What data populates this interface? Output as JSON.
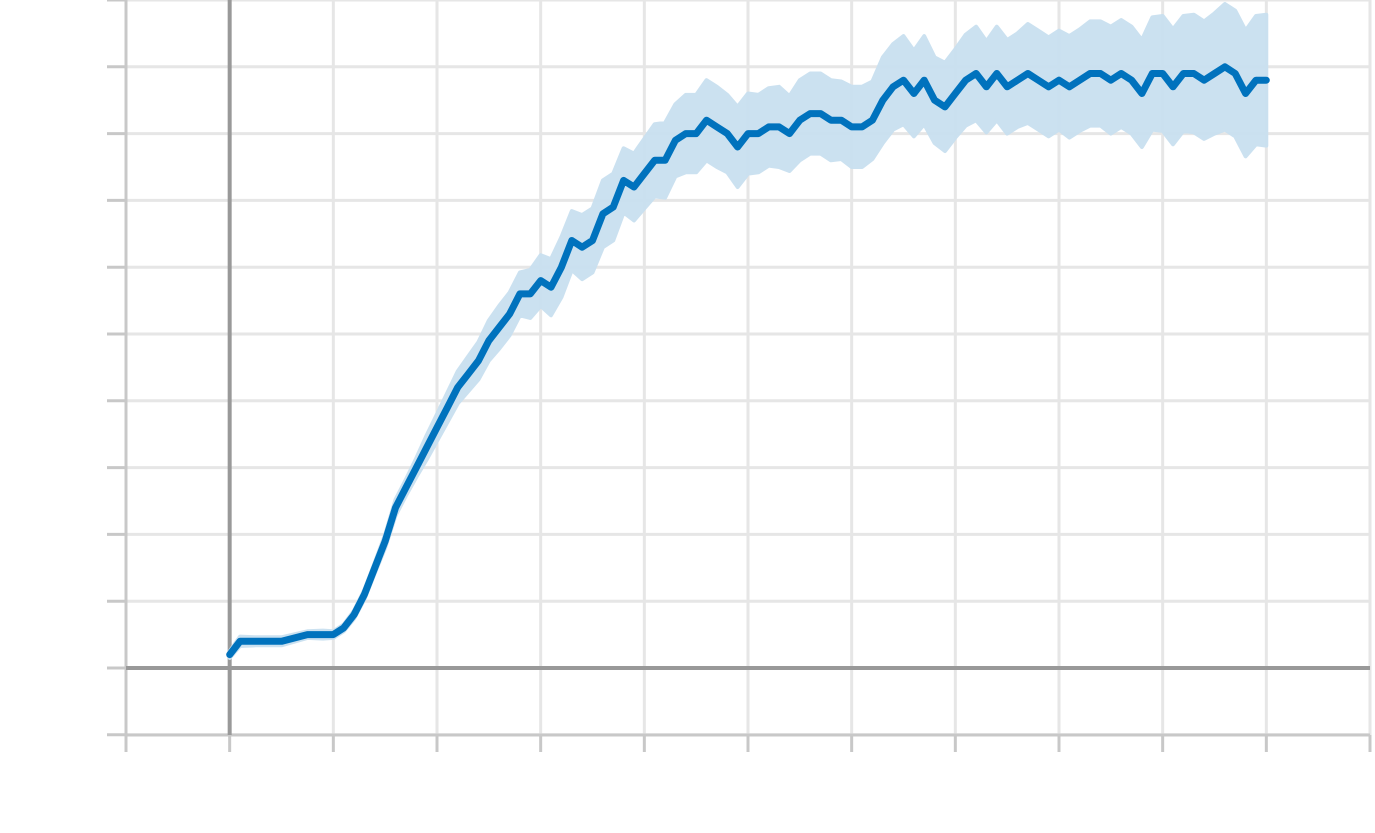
{
  "chart_data": {
    "type": "line",
    "title": "",
    "xlabel": "",
    "ylabel": "",
    "xlim": [
      -1,
      11
    ],
    "ylim": [
      -1,
      10
    ],
    "x_ticks": [
      -1,
      0,
      1,
      2,
      3,
      4,
      5,
      6,
      7,
      8,
      9,
      10,
      11
    ],
    "y_ticks": [
      -1,
      0,
      1,
      2,
      3,
      4,
      5,
      6,
      7,
      8,
      9,
      10
    ],
    "grid": true,
    "legend": "none",
    "series": [
      {
        "color": "#0072bd",
        "band_color": "#c9e0f0",
        "x": [
          0,
          0.1,
          0.25,
          0.5,
          0.75,
          0.9,
          1.0,
          1.1,
          1.2,
          1.3,
          1.4,
          1.5,
          1.6,
          1.7,
          1.8,
          1.9,
          2.0,
          2.1,
          2.2,
          2.3,
          2.4,
          2.5,
          2.6,
          2.7,
          2.8,
          2.9,
          3.0,
          3.1,
          3.2,
          3.3,
          3.4,
          3.5,
          3.6,
          3.7,
          3.8,
          3.9,
          4.0,
          4.1,
          4.2,
          4.3,
          4.4,
          4.5,
          4.6,
          4.7,
          4.8,
          4.9,
          5.0,
          5.1,
          5.2,
          5.3,
          5.4,
          5.5,
          5.6,
          5.7,
          5.8,
          5.9,
          6.0,
          6.1,
          6.2,
          6.3,
          6.4,
          6.5,
          6.6,
          6.7,
          6.8,
          6.9,
          7.0,
          7.1,
          7.2,
          7.3,
          7.4,
          7.5,
          7.6,
          7.7,
          7.8,
          7.9,
          8.0,
          8.1,
          8.2,
          8.3,
          8.4,
          8.5,
          8.6,
          8.7,
          8.8,
          8.9,
          9.0,
          9.1,
          9.2,
          9.3,
          9.4,
          9.5,
          9.6,
          9.7,
          9.8,
          9.9,
          10.0
        ],
        "mean": [
          0.2,
          0.4,
          0.4,
          0.4,
          0.5,
          0.5,
          0.5,
          0.6,
          0.8,
          1.1,
          1.5,
          1.9,
          2.4,
          2.7,
          3.0,
          3.3,
          3.6,
          3.9,
          4.2,
          4.4,
          4.6,
          4.9,
          5.1,
          5.3,
          5.6,
          5.6,
          5.8,
          5.7,
          6.0,
          6.4,
          6.3,
          6.4,
          6.8,
          6.9,
          7.3,
          7.2,
          7.4,
          7.6,
          7.6,
          7.9,
          8.0,
          8.0,
          8.2,
          8.1,
          8.0,
          7.8,
          8.0,
          8.0,
          8.1,
          8.1,
          8.0,
          8.2,
          8.3,
          8.3,
          8.2,
          8.2,
          8.1,
          8.1,
          8.2,
          8.5,
          8.7,
          8.8,
          8.6,
          8.8,
          8.5,
          8.4,
          8.6,
          8.8,
          8.9,
          8.7,
          8.9,
          8.7,
          8.8,
          8.9,
          8.8,
          8.7,
          8.8,
          8.7,
          8.8,
          8.9,
          8.9,
          8.8,
          8.9,
          8.8,
          8.6,
          8.9,
          8.9,
          8.7,
          8.9,
          8.9,
          8.8,
          8.9,
          9.0,
          8.9,
          8.6,
          8.8,
          8.8
        ],
        "lower": [
          0.15,
          0.33,
          0.34,
          0.34,
          0.45,
          0.44,
          0.45,
          0.55,
          0.74,
          1.03,
          1.42,
          1.8,
          2.28,
          2.58,
          2.86,
          3.12,
          3.4,
          3.68,
          3.96,
          4.14,
          4.32,
          4.6,
          4.78,
          4.98,
          5.28,
          5.24,
          5.42,
          5.28,
          5.55,
          5.96,
          5.82,
          5.92,
          6.3,
          6.4,
          6.82,
          6.7,
          6.88,
          7.06,
          7.04,
          7.36,
          7.42,
          7.42,
          7.6,
          7.5,
          7.42,
          7.2,
          7.4,
          7.42,
          7.52,
          7.5,
          7.44,
          7.6,
          7.7,
          7.7,
          7.6,
          7.62,
          7.5,
          7.5,
          7.62,
          7.86,
          8.06,
          8.14,
          7.96,
          8.14,
          7.86,
          7.74,
          7.94,
          8.12,
          8.2,
          8.02,
          8.2,
          8.0,
          8.1,
          8.16,
          8.06,
          7.96,
          8.06,
          7.94,
          8.04,
          8.12,
          8.12,
          8.0,
          8.1,
          8.0,
          7.8,
          8.06,
          8.04,
          7.84,
          8.04,
          8.02,
          7.92,
          8.0,
          8.06,
          7.96,
          7.66,
          7.84,
          7.82
        ],
        "upper": [
          0.25,
          0.47,
          0.46,
          0.46,
          0.55,
          0.56,
          0.55,
          0.65,
          0.86,
          1.17,
          1.58,
          2.0,
          2.52,
          2.82,
          3.14,
          3.48,
          3.8,
          4.12,
          4.44,
          4.66,
          4.88,
          5.2,
          5.42,
          5.62,
          5.92,
          5.96,
          6.18,
          6.12,
          6.45,
          6.84,
          6.78,
          6.88,
          7.3,
          7.4,
          7.78,
          7.7,
          7.92,
          8.14,
          8.16,
          8.44,
          8.58,
          8.58,
          8.8,
          8.7,
          8.58,
          8.4,
          8.6,
          8.58,
          8.68,
          8.7,
          8.56,
          8.8,
          8.9,
          8.9,
          8.8,
          8.78,
          8.7,
          8.7,
          8.78,
          9.14,
          9.34,
          9.46,
          9.24,
          9.46,
          9.14,
          9.06,
          9.26,
          9.48,
          9.6,
          9.38,
          9.6,
          9.4,
          9.5,
          9.64,
          9.54,
          9.44,
          9.54,
          9.46,
          9.56,
          9.68,
          9.68,
          9.6,
          9.7,
          9.6,
          9.4,
          9.74,
          9.76,
          9.56,
          9.76,
          9.78,
          9.68,
          9.8,
          9.94,
          9.84,
          9.54,
          9.76,
          9.78
        ]
      }
    ]
  }
}
